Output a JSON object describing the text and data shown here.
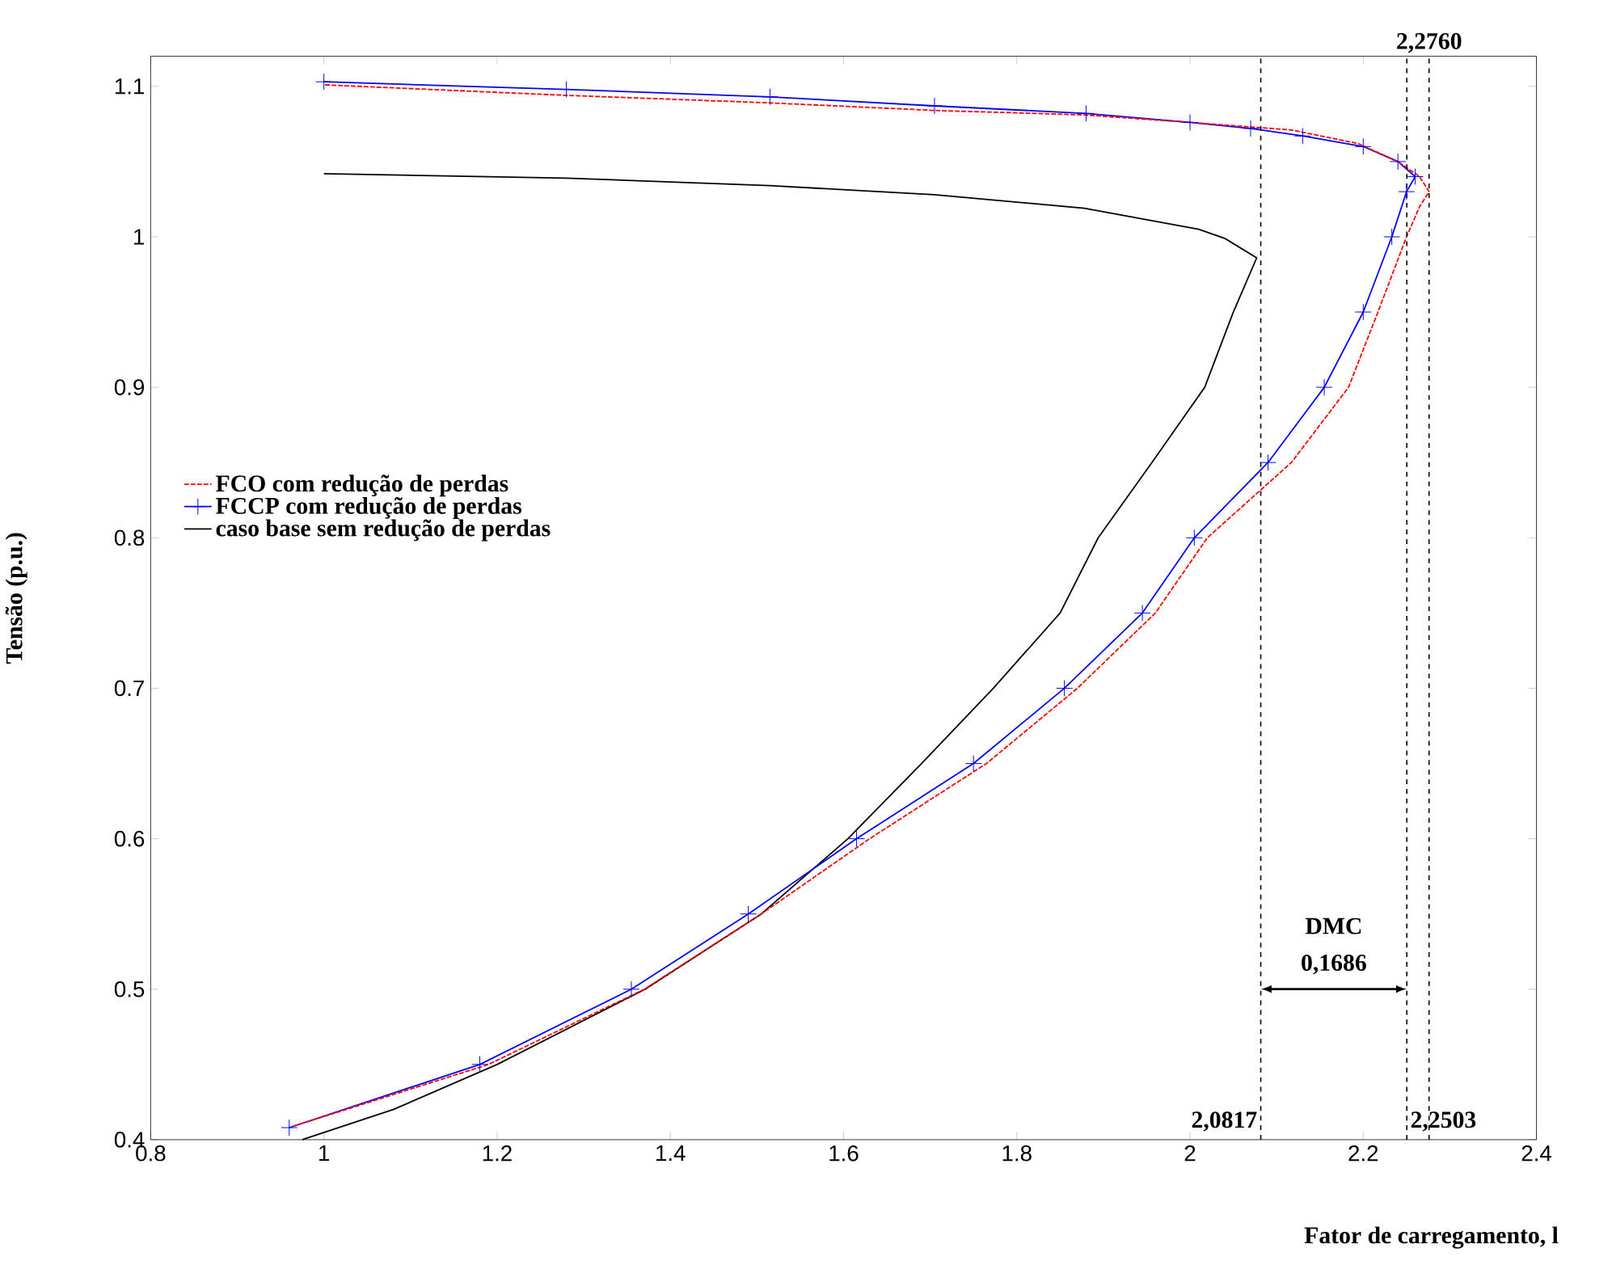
{
  "chart_data": {
    "type": "line",
    "xlabel": "Fator de carregamento, l",
    "ylabel": "Tensão (p.u.)",
    "xlim": [
      0.8,
      2.4
    ],
    "ylim": [
      0.4,
      1.12
    ],
    "xticks": [
      0.8,
      1,
      1.2,
      1.4,
      1.6,
      1.8,
      2,
      2.2,
      2.4
    ],
    "yticks": [
      0.4,
      0.5,
      0.6,
      0.7,
      0.8,
      0.9,
      1,
      1.1
    ],
    "grid": false,
    "legend": "left",
    "series": [
      {
        "name": "FCO com redução de perdas",
        "color": "#ff0000",
        "line_style": "dashed",
        "marker": "none",
        "x": [
          0.965,
          1.19,
          1.37,
          1.505,
          1.63,
          1.765,
          1.87,
          1.96,
          2.02,
          2.117,
          2.183,
          2.217,
          2.25,
          2.265,
          2.276,
          2.265,
          2.24,
          2.194,
          2.117,
          2.0,
          1.878,
          1.705,
          1.515,
          1.28,
          1.0
        ],
        "values": [
          0.409,
          0.45,
          0.5,
          0.55,
          0.6,
          0.65,
          0.7,
          0.75,
          0.8,
          0.85,
          0.9,
          0.95,
          1.0,
          1.02,
          1.03,
          1.04,
          1.05,
          1.062,
          1.071,
          1.076,
          1.081,
          1.084,
          1.089,
          1.094,
          1.101
        ]
      },
      {
        "name": "FCCP com redução de perdas",
        "color": "#0000ff",
        "line_style": "solid",
        "marker": "cross",
        "x": [
          1.0,
          1.28,
          1.515,
          1.705,
          1.88,
          2.0,
          2.07,
          2.13,
          2.2,
          2.24,
          2.26,
          2.25,
          2.233,
          2.2,
          2.155,
          2.09,
          2.005,
          1.945,
          1.855,
          1.75,
          1.615,
          1.49,
          1.355,
          1.18,
          0.96
        ],
        "values": [
          1.103,
          1.098,
          1.093,
          1.087,
          1.082,
          1.076,
          1.072,
          1.067,
          1.06,
          1.05,
          1.04,
          1.03,
          1.0,
          0.95,
          0.9,
          0.85,
          0.8,
          0.75,
          0.7,
          0.65,
          0.6,
          0.55,
          0.5,
          0.45,
          0.408
        ]
      },
      {
        "name": "caso base sem redução de perdas",
        "color": "#000000",
        "line_style": "solid",
        "marker": "none",
        "x": [
          1.0,
          1.28,
          1.515,
          1.705,
          1.878,
          2.01,
          2.04,
          2.077,
          2.05,
          2.017,
          1.956,
          1.894,
          1.85,
          1.773,
          1.69,
          1.605,
          1.505,
          1.371,
          1.2,
          1.08,
          0.975
        ],
        "values": [
          1.042,
          1.039,
          1.034,
          1.028,
          1.019,
          1.005,
          0.999,
          0.986,
          0.95,
          0.9,
          0.85,
          0.8,
          0.75,
          0.7,
          0.65,
          0.6,
          0.55,
          0.5,
          0.45,
          0.42,
          0.4
        ]
      }
    ],
    "ref_lines": [
      {
        "axis": "x",
        "value": 2.0817,
        "label": "2,0817",
        "color": "#000000",
        "line_style": "dashed"
      },
      {
        "axis": "x",
        "value": 2.2503,
        "label": "2,2503",
        "color": "#000000",
        "line_style": "dashed"
      },
      {
        "axis": "x",
        "value": 2.276,
        "label": "2,2760",
        "color": "#000000",
        "line_style": "dashed"
      }
    ],
    "annotations": [
      "DMC",
      "0,1686"
    ]
  }
}
